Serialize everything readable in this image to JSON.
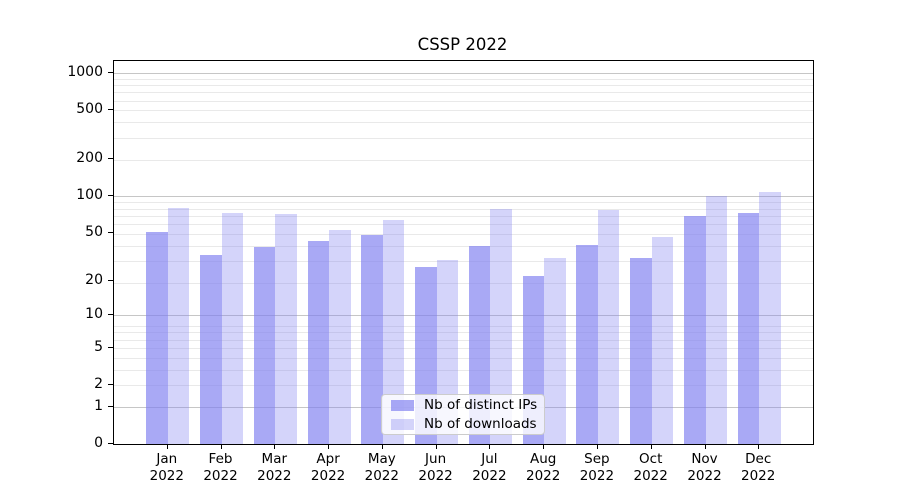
{
  "chart_data": {
    "type": "bar",
    "title": "CSSP 2022",
    "categories": [
      "Jan 2022",
      "Feb 2022",
      "Mar 2022",
      "Apr 2022",
      "May 2022",
      "Jun 2022",
      "Jul 2022",
      "Aug 2022",
      "Sep 2022",
      "Oct 2022",
      "Nov 2022",
      "Dec 2022"
    ],
    "series": [
      {
        "name": "Nb of distinct IPs",
        "color": "rgba(124,124,240,0.66)",
        "values": [
          51,
          33,
          38,
          43,
          48,
          26,
          39,
          22,
          40,
          31,
          69,
          73
        ]
      },
      {
        "name": "Nb of downloads",
        "color": "rgba(124,124,240,0.33)",
        "values": [
          80,
          73,
          72,
          53,
          64,
          30,
          79,
          31,
          77,
          46,
          101,
          108
        ]
      }
    ],
    "xlabel": "",
    "ylabel": "",
    "yscale": "log1p",
    "yticks": [
      0,
      1,
      2,
      5,
      10,
      20,
      50,
      100,
      200,
      500,
      1000
    ],
    "ylim": [
      0,
      1250
    ],
    "grid": true,
    "legend_position": "lower center",
    "colors": {
      "bar_base": "#7c7cf0",
      "grid_major": "#c6c6c6",
      "grid_minor": "#e9e9e9",
      "spine": "#000000",
      "legend_border": "#cccccc"
    }
  }
}
